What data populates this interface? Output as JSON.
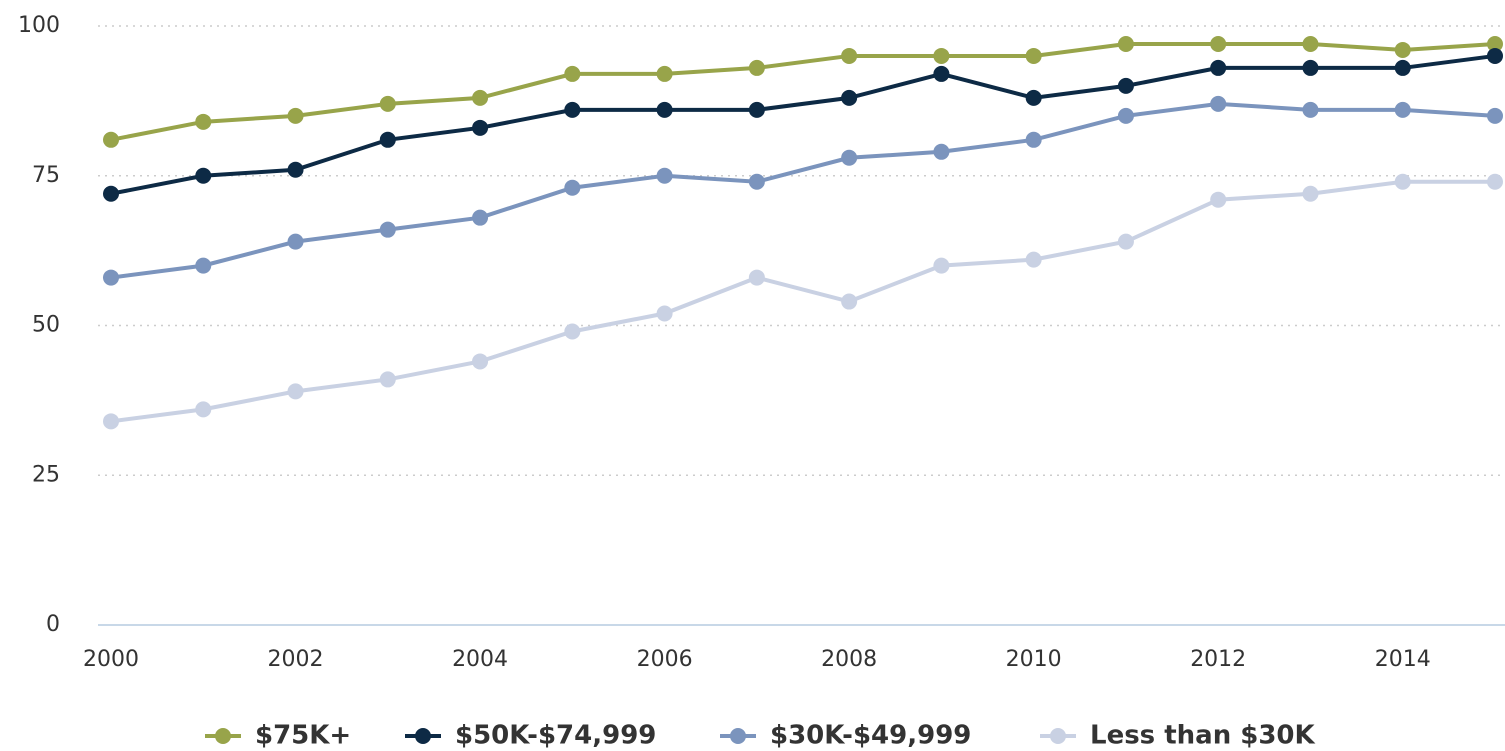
{
  "chart_data": {
    "type": "line",
    "x": [
      2000,
      2001,
      2002,
      2003,
      2004,
      2005,
      2006,
      2007,
      2008,
      2009,
      2010,
      2011,
      2012,
      2013,
      2014,
      2015
    ],
    "series": [
      {
        "name": "$75K+",
        "color": "#98a44a",
        "values": [
          81,
          84,
          85,
          87,
          88,
          92,
          92,
          93,
          95,
          95,
          95,
          97,
          97,
          97,
          96,
          97
        ]
      },
      {
        "name": "$50K-$74,999",
        "color": "#0d2a45",
        "values": [
          72,
          75,
          76,
          81,
          83,
          86,
          86,
          86,
          88,
          92,
          88,
          90,
          93,
          93,
          93,
          95
        ]
      },
      {
        "name": "$30K-$49,999",
        "color": "#7b94bd",
        "values": [
          58,
          60,
          64,
          66,
          68,
          73,
          75,
          74,
          78,
          79,
          81,
          85,
          87,
          86,
          86,
          85
        ]
      },
      {
        "name": "Less than $30K",
        "color": "#c9d1e3",
        "values": [
          34,
          36,
          39,
          41,
          44,
          49,
          52,
          58,
          54,
          60,
          61,
          64,
          71,
          72,
          74,
          74
        ]
      }
    ],
    "xlim": [
      2000,
      2015
    ],
    "xticks": [
      2000,
      2002,
      2004,
      2006,
      2008,
      2010,
      2012,
      2014
    ],
    "ylim": [
      0,
      100
    ],
    "yticks": [
      0,
      25,
      50,
      75,
      100
    ],
    "grid": true,
    "legend": "bottom"
  }
}
